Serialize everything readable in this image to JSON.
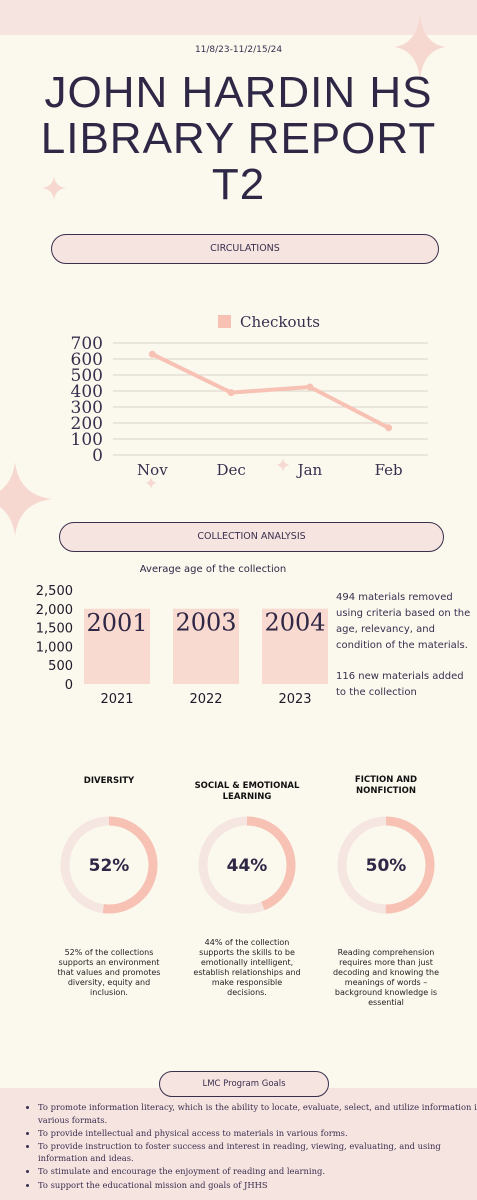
{
  "date_range": "11/8/23-11/2/15/24",
  "title_lines": [
    "JOHN HARDIN HS",
    "LIBRARY REPORT",
    "T2"
  ],
  "sections": {
    "circulations": "CIRCULATIONS",
    "collection_analysis": "COLLECTION ANALYSIS",
    "program_goals": "LMC Program Goals"
  },
  "colors": {
    "accent": "#f7c2b4",
    "bar": "#f9dad0",
    "text": "#3a2f4e",
    "band": "#f6e4e1"
  },
  "chart_data": [
    {
      "type": "line",
      "legend": "Checkouts",
      "legend_position": "top",
      "categories": [
        "Nov",
        "Dec",
        "Jan",
        "Feb"
      ],
      "series": [
        {
          "name": "Checkouts",
          "values": [
            630,
            390,
            425,
            170
          ]
        }
      ],
      "ylim": [
        0,
        700
      ],
      "yticks": [
        0,
        100,
        200,
        300,
        400,
        500,
        600,
        700
      ],
      "grid": true
    },
    {
      "type": "bar",
      "title": "Average age of the collection",
      "categories": [
        "2021",
        "2022",
        "2023"
      ],
      "values": [
        2001,
        2003,
        2004
      ],
      "data_labels": [
        "2001",
        "2003",
        "2004"
      ],
      "ylim": [
        0,
        2500
      ],
      "yticks": [
        "0",
        "500",
        "1,000",
        "1,500",
        "2,000",
        "2,500"
      ],
      "grid": false
    }
  ],
  "collection_notes": [
    "494 materials removed using criteria based on the age, relevancy, and condition of the materials.",
    "116 new materials added to the collection"
  ],
  "stats": [
    {
      "heading": "DIVERSITY",
      "percent": 52,
      "label": "52%",
      "description": "52% of the collections supports an environment that values and promotes diversity, equity and inclusion."
    },
    {
      "heading": "SOCIAL & EMOTIONAL LEARNING",
      "percent": 44,
      "label": "44%",
      "description": "44% of the collection supports the skills to be emotionally intelligent, establish relationships and make responsible decisions."
    },
    {
      "heading": "FICTION AND NONFICTION",
      "percent": 50,
      "label": "50%",
      "description": "Reading comprehension requires more than just decoding and knowing the meanings of words – background knowledge is essential"
    }
  ],
  "goals": [
    "To promote information literacy, which is the ability to locate, evaluate, select, and utilize information in various formats.",
    "To provide intellectual and physical access to materials in various forms.",
    "To provide instruction to foster success and interest in reading, viewing, evaluating, and using information and ideas.",
    "To stimulate and encourage the enjoyment of reading and learning.",
    "To support the educational mission and goals of JHHS"
  ]
}
